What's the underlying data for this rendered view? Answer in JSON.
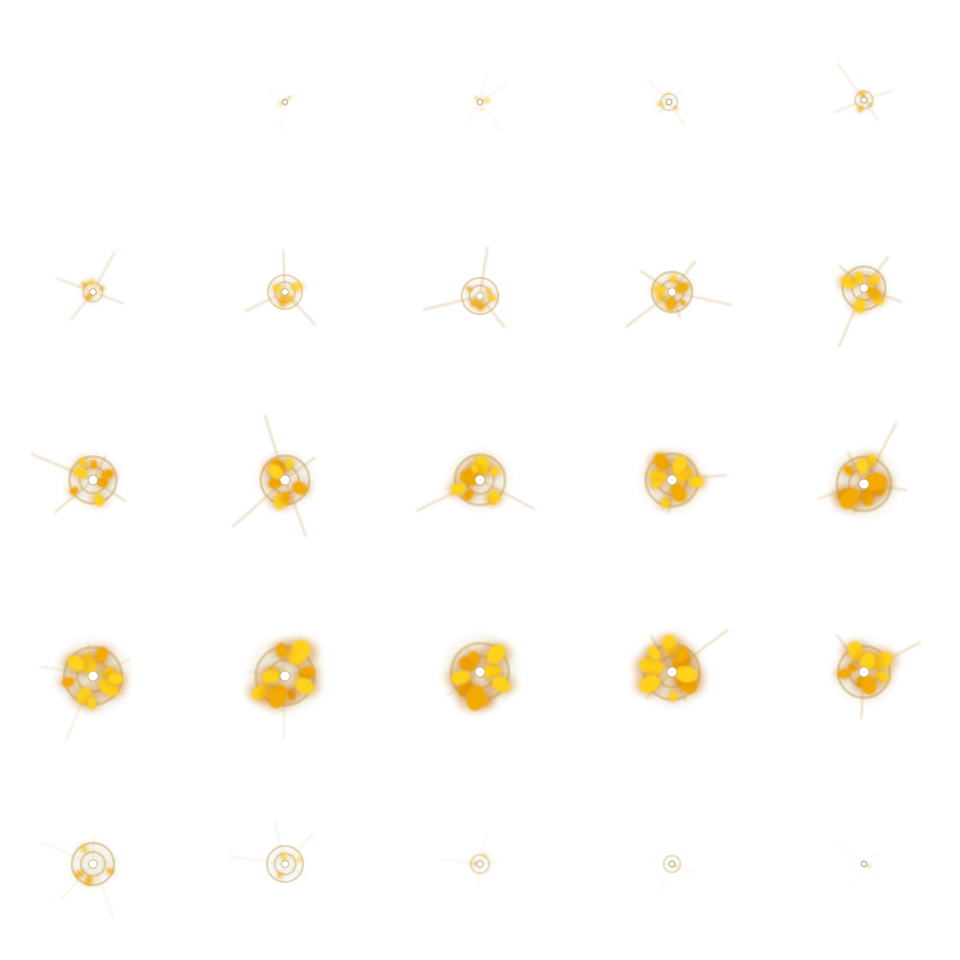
{
  "sprite_sheet": {
    "columns": 5,
    "rows": 5,
    "background": "#ffffff",
    "palette": {
      "flame_core": "#ffd21a",
      "flame_edge": "#f2a900",
      "ember": "#c87418",
      "ring": "#b8a878",
      "ring_inner": "#d9c89a",
      "haze": "#d8d0a8",
      "ray": "#c89a50"
    },
    "frames": [
      {
        "index": 1,
        "intensity": 0.0
      },
      {
        "index": 2,
        "intensity": 0.04
      },
      {
        "index": 3,
        "intensity": 0.08
      },
      {
        "index": 4,
        "intensity": 0.13
      },
      {
        "index": 5,
        "intensity": 0.18
      },
      {
        "index": 6,
        "intensity": 0.26
      },
      {
        "index": 7,
        "intensity": 0.3
      },
      {
        "index": 8,
        "intensity": 0.36
      },
      {
        "index": 9,
        "intensity": 0.45
      },
      {
        "index": 10,
        "intensity": 0.52
      },
      {
        "index": 11,
        "intensity": 0.62
      },
      {
        "index": 12,
        "intensity": 0.66
      },
      {
        "index": 13,
        "intensity": 0.7
      },
      {
        "index": 14,
        "intensity": 0.76
      },
      {
        "index": 15,
        "intensity": 0.8
      },
      {
        "index": 16,
        "intensity": 0.88
      },
      {
        "index": 17,
        "intensity": 0.9
      },
      {
        "index": 18,
        "intensity": 0.88
      },
      {
        "index": 19,
        "intensity": 0.82
      },
      {
        "index": 20,
        "intensity": 0.74
      },
      {
        "index": 21,
        "intensity": 0.5
      },
      {
        "index": 22,
        "intensity": 0.35
      },
      {
        "index": 23,
        "intensity": 0.22
      },
      {
        "index": 24,
        "intensity": 0.14
      },
      {
        "index": 25,
        "intensity": 0.08
      }
    ]
  }
}
